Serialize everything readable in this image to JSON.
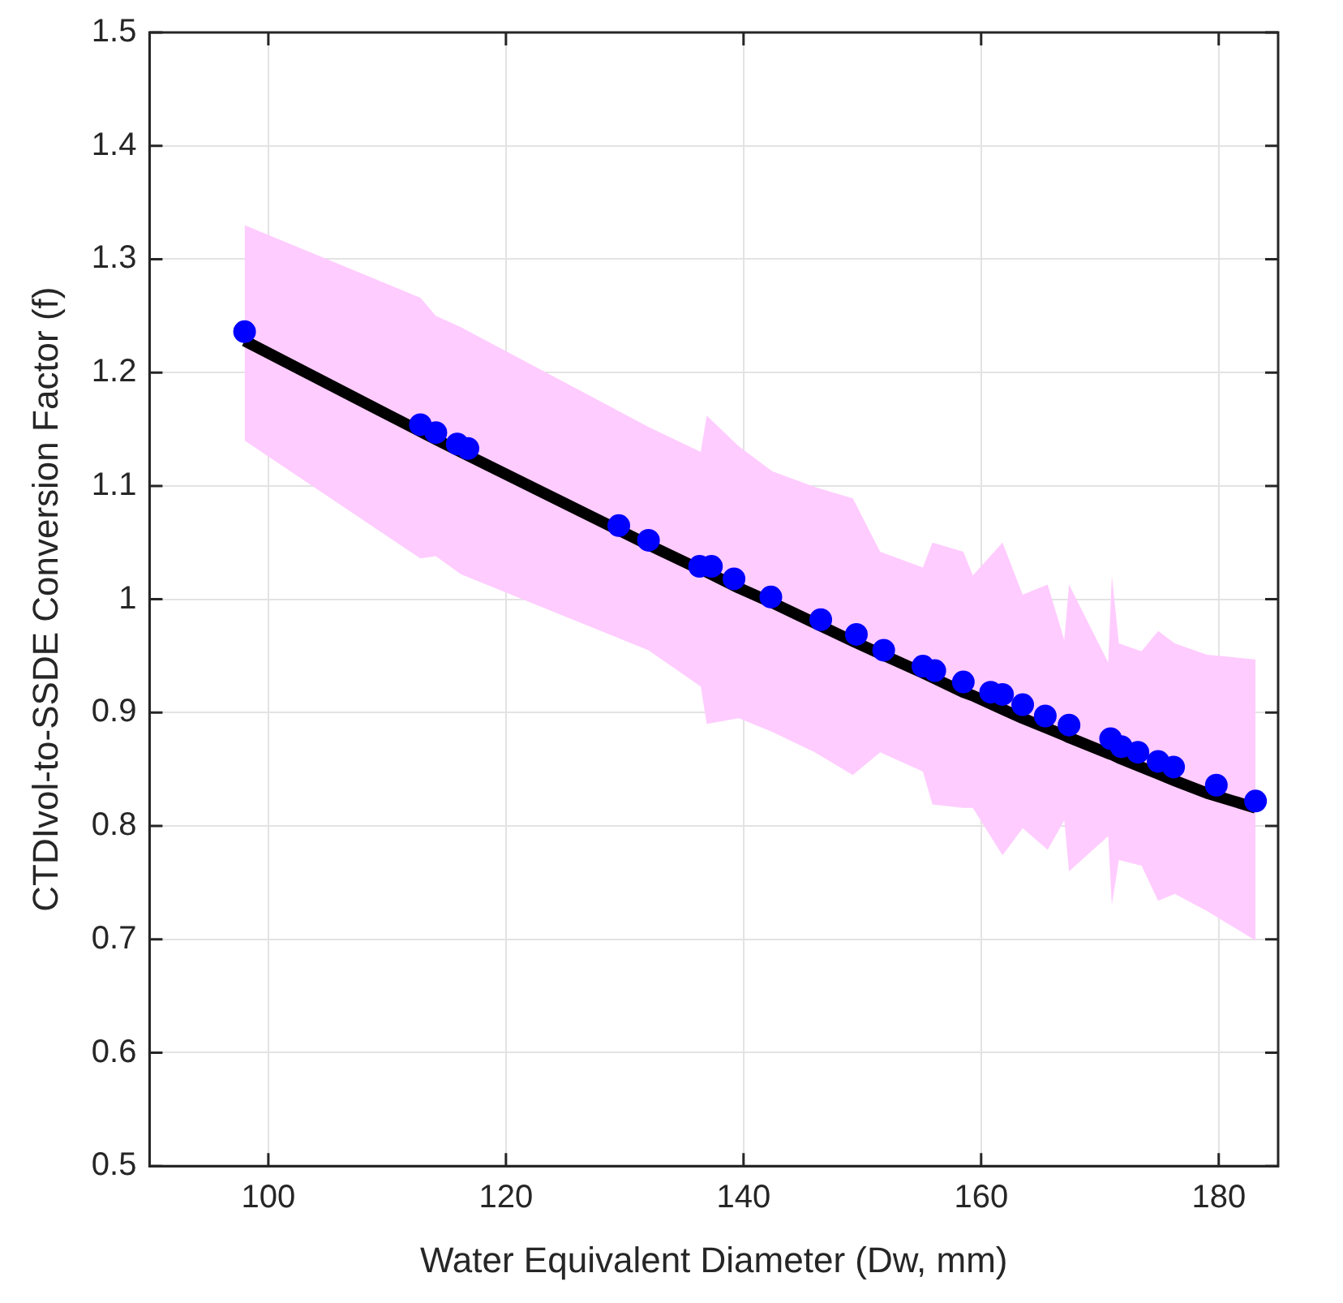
{
  "chart_data": {
    "type": "scatter",
    "xlabel": "Water Equivalent Diameter (Dw, mm)",
    "ylabel": "CTDIvol-to-SSDE Conversion Factor (f)",
    "xlim": [
      90,
      185
    ],
    "xticks": [
      100,
      120,
      140,
      160,
      180
    ],
    "ylim": [
      0.5,
      1.5
    ],
    "yticks": [
      0.5,
      0.6,
      0.7,
      0.8,
      0.9,
      1,
      1.1,
      1.2,
      1.3,
      1.4,
      1.5
    ],
    "grid": true,
    "series": [
      {
        "marker": "circle",
        "color": "#0000ff",
        "x": [
          98.0,
          112.8,
          114.1,
          115.9,
          116.8,
          129.5,
          132.0,
          136.3,
          137.3,
          139.2,
          142.3,
          146.5,
          149.5,
          151.8,
          155.1,
          156.1,
          158.5,
          160.8,
          161.8,
          163.5,
          165.4,
          167.4,
          170.9,
          171.8,
          173.2,
          174.9,
          176.2,
          179.8,
          183.1
        ],
        "values": [
          1.236,
          1.154,
          1.147,
          1.137,
          1.133,
          1.065,
          1.052,
          1.029,
          1.029,
          1.018,
          1.002,
          0.982,
          0.969,
          0.955,
          0.941,
          0.937,
          0.927,
          0.918,
          0.916,
          0.907,
          0.897,
          0.889,
          0.877,
          0.87,
          0.865,
          0.857,
          0.852,
          0.836,
          0.822
        ]
      },
      {
        "type": "line",
        "marker": "none",
        "color": "#000000",
        "x": [
          98,
          112.8,
          114.1,
          116.2,
          132,
          136.4,
          136.9,
          139.6,
          142.4,
          146,
          149.2,
          151.5,
          155.1,
          155.9,
          158.5,
          159.3,
          161.8,
          163.5,
          165.6,
          167,
          167.4,
          170.7,
          171,
          171.6,
          173.5,
          174.9,
          176.3,
          179,
          183.1
        ],
        "values": [
          1.228,
          1.148,
          1.141,
          1.13,
          1.048,
          1.026,
          1.024,
          1.01,
          0.997,
          0.979,
          0.963,
          0.952,
          0.935,
          0.931,
          0.918,
          0.915,
          0.903,
          0.895,
          0.886,
          0.88,
          0.878,
          0.864,
          0.863,
          0.86,
          0.852,
          0.846,
          0.84,
          0.829,
          0.816
        ],
        "lower": [
          1.14,
          1.036,
          1.038,
          1.022,
          0.955,
          0.923,
          0.89,
          0.895,
          0.883,
          0.865,
          0.845,
          0.865,
          0.848,
          0.819,
          0.816,
          0.816,
          0.774,
          0.798,
          0.779,
          0.805,
          0.76,
          0.791,
          0.73,
          0.77,
          0.765,
          0.734,
          0.74,
          0.725,
          0.699
        ],
        "upper": [
          1.33,
          1.266,
          1.25,
          1.24,
          1.152,
          1.13,
          1.162,
          1.135,
          1.113,
          1.099,
          1.089,
          1.042,
          1.028,
          1.05,
          1.042,
          1.021,
          1.05,
          1.004,
          1.013,
          0.964,
          1.013,
          0.944,
          1.021,
          0.961,
          0.954,
          0.972,
          0.961,
          0.951,
          0.947
        ]
      }
    ]
  }
}
